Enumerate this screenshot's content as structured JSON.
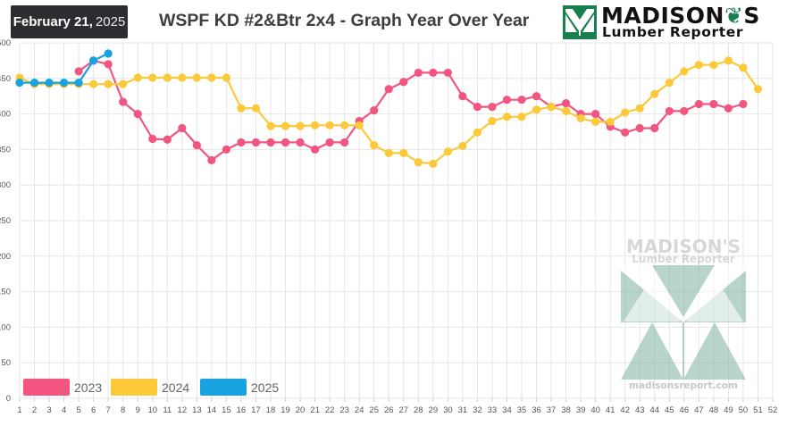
{
  "header": {
    "date_month_day": "February 21,",
    "date_year": "2025",
    "title": "WSPF KD #2&Btr 2x4 - Graph Year Over Year",
    "logo_name_prefix": "MADISON",
    "logo_name_suffix": "S",
    "logo_subtitle": "Lumber Reporter"
  },
  "watermark": {
    "name": "MADISON'S",
    "subtitle": "Lumber Reporter",
    "url": "madisonsreport.com"
  },
  "colors": {
    "2023": "#f2557f",
    "2024": "#fcc93a",
    "2025": "#18a3e0",
    "grid": "#e6e6e6",
    "logo_green": "#1a7f4e"
  },
  "chart_data": {
    "type": "line",
    "title": "WSPF KD #2&Btr 2x4 - Graph Year Over Year",
    "xlabel": "",
    "ylabel": "",
    "x": [
      1,
      2,
      3,
      4,
      5,
      6,
      7,
      8,
      9,
      10,
      11,
      12,
      13,
      14,
      15,
      16,
      17,
      18,
      19,
      20,
      21,
      22,
      23,
      24,
      25,
      26,
      27,
      28,
      29,
      30,
      31,
      32,
      33,
      34,
      35,
      36,
      37,
      38,
      39,
      40,
      41,
      42,
      43,
      44,
      45,
      46,
      47,
      48,
      49,
      50,
      51,
      52
    ],
    "xlim": [
      1,
      52
    ],
    "ylim": [
      0,
      500
    ],
    "yticks": [
      0,
      50,
      100,
      150,
      200,
      250,
      300,
      350,
      400,
      450,
      500
    ],
    "ytick_labels": [
      "0",
      "50",
      "100",
      "150",
      "200",
      "250",
      "300",
      "350",
      "400",
      "450",
      "500"
    ],
    "legend_position": "bottom-left",
    "grid": true,
    "series": [
      {
        "name": "2023",
        "x": [
          5,
          6,
          7,
          8,
          9,
          10,
          11,
          12,
          13,
          14,
          15,
          16,
          17,
          18,
          19,
          20,
          21,
          22,
          23,
          24,
          25,
          26,
          27,
          28,
          29,
          30,
          31,
          32,
          33,
          34,
          35,
          36,
          37,
          38,
          39,
          40,
          41,
          42,
          43,
          44,
          45,
          46,
          47,
          48,
          49,
          50
        ],
        "values": [
          460,
          475,
          470,
          417,
          400,
          365,
          364,
          380,
          356,
          335,
          350,
          360,
          360,
          360,
          360,
          360,
          350,
          360,
          360,
          390,
          405,
          435,
          445,
          458,
          458,
          458,
          425,
          410,
          410,
          420,
          420,
          425,
          410,
          415,
          400,
          400,
          382,
          374,
          380,
          380,
          404,
          404,
          414,
          414,
          408,
          414
        ]
      },
      {
        "name": "2024",
        "x": [
          1,
          2,
          3,
          4,
          5,
          6,
          7,
          8,
          9,
          10,
          11,
          12,
          13,
          14,
          15,
          16,
          17,
          18,
          19,
          20,
          21,
          22,
          23,
          24,
          25,
          26,
          27,
          28,
          29,
          30,
          31,
          32,
          33,
          34,
          35,
          36,
          37,
          38,
          39,
          40,
          41,
          42,
          43,
          44,
          45,
          46,
          47,
          48,
          49,
          50,
          51
        ],
        "values": [
          451,
          442,
          442,
          442,
          442,
          442,
          442,
          442,
          451,
          451,
          451,
          451,
          451,
          451,
          451,
          408,
          408,
          383,
          383,
          383,
          384,
          384,
          384,
          384,
          356,
          345,
          345,
          332,
          330,
          347,
          355,
          374,
          390,
          396,
          396,
          406,
          410,
          404,
          394,
          389,
          389,
          402,
          408,
          428,
          444,
          460,
          469,
          469,
          475,
          465,
          435
        ]
      },
      {
        "name": "2025",
        "x": [
          1,
          2,
          3,
          4,
          5,
          6,
          7
        ],
        "values": [
          444,
          444,
          444,
          444,
          444,
          475,
          485
        ]
      }
    ]
  }
}
